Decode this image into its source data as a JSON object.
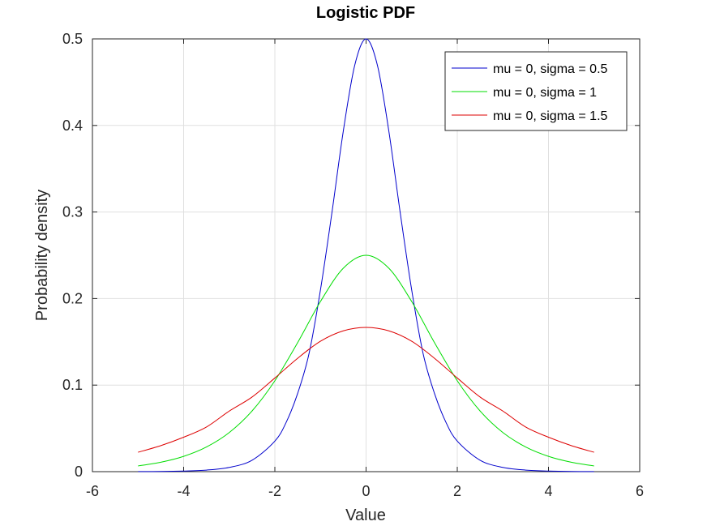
{
  "chart_data": {
    "type": "line",
    "title": "Logistic PDF",
    "xlabel": "Value",
    "ylabel": "Probability density",
    "xlim": [
      -6,
      6
    ],
    "ylim": [
      0,
      0.5
    ],
    "xticks": [
      "-6",
      "-4",
      "-2",
      "0",
      "2",
      "4",
      "6"
    ],
    "yticks": [
      "0",
      "0.1",
      "0.2",
      "0.3",
      "0.4",
      "0.5"
    ],
    "grid": true,
    "legend_position": "top-right",
    "series": [
      {
        "name": "mu = 0, sigma = 0.5",
        "color": "#0000cc",
        "x": [
          -5,
          -4.5,
          -4,
          -3.5,
          -3,
          -2.5,
          -2,
          -1.75,
          -1.5,
          -1.25,
          -1,
          -0.75,
          -0.5,
          -0.25,
          0,
          0.25,
          0.5,
          0.75,
          1,
          1.25,
          1.5,
          1.75,
          2,
          2.5,
          3,
          3.5,
          4,
          4.5,
          5
        ],
        "y": [
          0.0001,
          0.0002,
          0.0007,
          0.0018,
          0.0049,
          0.0132,
          0.0353,
          0.0572,
          0.0904,
          0.1366,
          0.21,
          0.2987,
          0.3932,
          0.4692,
          0.5,
          0.4692,
          0.3932,
          0.2987,
          0.21,
          0.1366,
          0.0904,
          0.0572,
          0.0353,
          0.0132,
          0.0049,
          0.0018,
          0.0007,
          0.0002,
          0.0001
        ]
      },
      {
        "name": "mu = 0, sigma = 1",
        "color": "#00dd00",
        "x": [
          -5,
          -4.5,
          -4,
          -3.5,
          -3,
          -2.5,
          -2,
          -1.5,
          -1,
          -0.5,
          0,
          0.5,
          1,
          1.5,
          2,
          2.5,
          3,
          3.5,
          4,
          4.5,
          5
        ],
        "y": [
          0.0066,
          0.0109,
          0.0177,
          0.0285,
          0.0452,
          0.0701,
          0.105,
          0.1491,
          0.1966,
          0.235,
          0.25,
          0.235,
          0.1966,
          0.1491,
          0.105,
          0.0701,
          0.0452,
          0.0285,
          0.0177,
          0.0109,
          0.0066
        ]
      },
      {
        "name": "mu = 0, sigma = 1.5",
        "color": "#dd0000",
        "x": [
          -5,
          -4.5,
          -4,
          -3.5,
          -3,
          -2.5,
          -2,
          -1.5,
          -1,
          -0.5,
          0,
          0.5,
          1,
          1.5,
          2,
          2.5,
          3,
          3.5,
          4,
          4.5,
          5
        ],
        "y": [
          0.0224,
          0.0301,
          0.0398,
          0.0516,
          0.07,
          0.0862,
          0.1082,
          0.131,
          0.1507,
          0.1627,
          0.1667,
          0.1627,
          0.1507,
          0.131,
          0.1082,
          0.0862,
          0.07,
          0.0516,
          0.0398,
          0.0301,
          0.0224
        ]
      }
    ]
  }
}
